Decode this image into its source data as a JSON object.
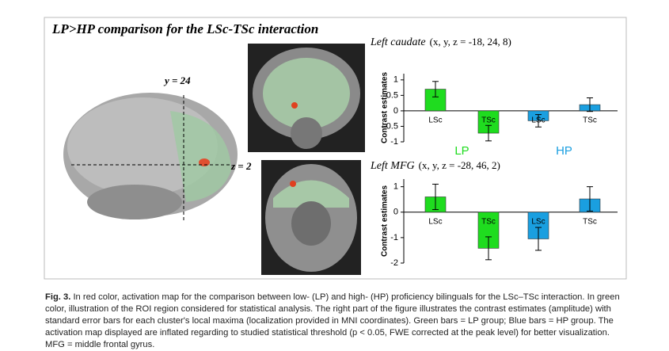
{
  "figure": {
    "title": "LP>HP comparison for the LSc-TSc interaction",
    "y_label": "y = 24",
    "z_label": "z = 2"
  },
  "chart_data": [
    {
      "type": "bar",
      "title": "Left caudate",
      "subtitle": "(x, y, z = -18, 24, 8)",
      "y_label": "Contrast estimates",
      "categories": [
        "LSc",
        "TSc"
      ],
      "ylim": [
        -1,
        1.2
      ],
      "yticks": [
        -1,
        -0.5,
        0,
        0.5,
        1
      ],
      "series": [
        {
          "name": "LP",
          "color": "#1fdc1f",
          "values": [
            0.7,
            -0.72
          ],
          "errors": [
            0.25,
            0.25
          ]
        },
        {
          "name": "HP",
          "color": "#1a9fe0",
          "values": [
            -0.32,
            0.2
          ],
          "errors": [
            0.2,
            0.22
          ]
        }
      ]
    },
    {
      "type": "bar",
      "title": "Left MFG",
      "subtitle": "(x, y, z = -28, 46, 2)",
      "y_label": "Contrast estimates",
      "categories": [
        "LSc",
        "TSc"
      ],
      "ylim": [
        -2,
        1.3
      ],
      "yticks": [
        -2,
        -1,
        0,
        1
      ],
      "series": [
        {
          "color": "#1fdc1f",
          "values": [
            0.6,
            -1.42
          ],
          "errors": [
            0.5,
            0.45
          ]
        },
        {
          "color": "#1a9fe0",
          "values": [
            -1.05,
            0.52
          ],
          "errors": [
            0.45,
            0.48
          ]
        }
      ]
    }
  ],
  "caption": {
    "label": "Fig. 3.",
    "text": "In red color, activation map for the comparison between low- (LP) and high- (HP) proficiency bilinguals for the LSc–TSc interaction. In green color, illustration of the ROI region considered for statistical analysis. The right part of the figure illustrates the contrast estimates (amplitude) with standard error bars for each cluster's local maxima (localization provided in MNI coordinates). Green bars = LP group; Blue bars = HP group. The activation map displayed are inflated regarding to studied statistical threshold (p < 0.05, FWE corrected at the peak level) for better visualization. MFG = middle frontal gyrus."
  }
}
